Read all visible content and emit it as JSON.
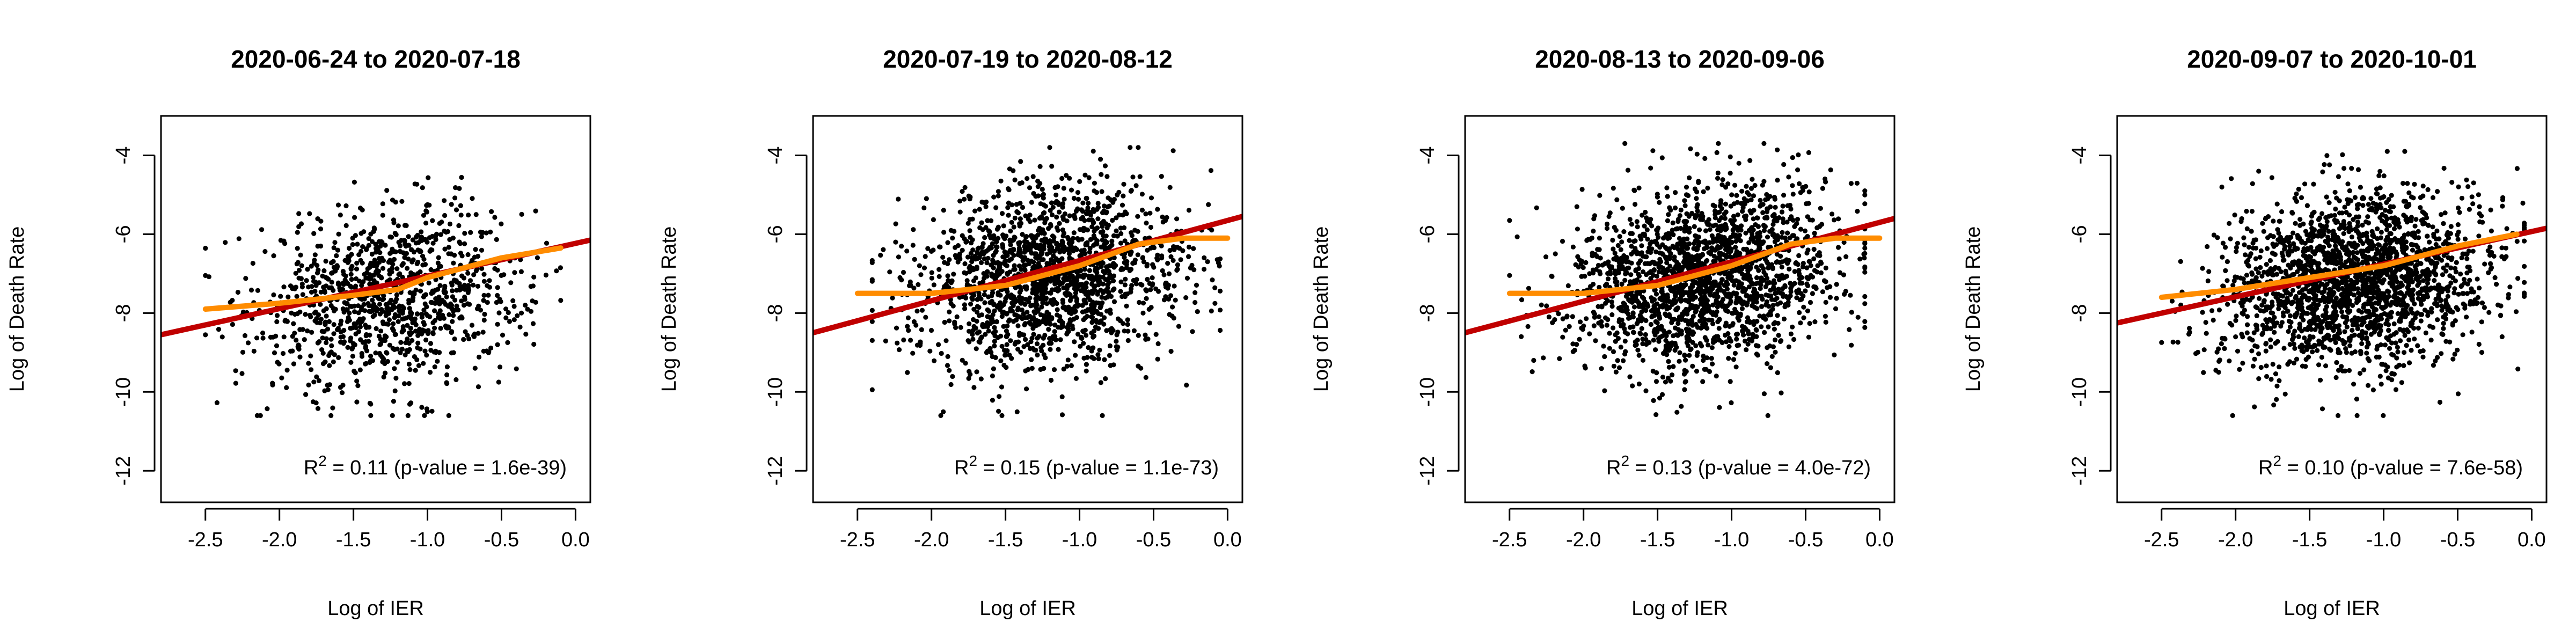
{
  "figure": {
    "background": "#ffffff",
    "point_color": "#000000",
    "fit_line_color": "#c00000",
    "smooth_line_color": "#ff8c00"
  },
  "chart_data": [
    {
      "type": "scatter",
      "title": "2020-06-24 to 2020-07-18",
      "xlabel": "Log of IER",
      "ylabel": "Log of Death Rate",
      "xlim": [
        -2.8,
        0.1
      ],
      "ylim": [
        -12.8,
        -3.0
      ],
      "xticks": [
        "-2.5",
        "-2.0",
        "-1.5",
        "-1.0",
        "-0.5",
        "0.0"
      ],
      "yticks": [
        "-4",
        "-6",
        "-8",
        "-10",
        "-12"
      ],
      "annotation": {
        "prefix": "R",
        "sup": "2",
        "text": " = 0.11 (p-value = 1.6e-39)"
      },
      "grid": false,
      "points_summary": {
        "n_approx": 1100,
        "x_range": [
          -2.5,
          -0.1
        ],
        "y_range": [
          -10.6,
          -4.3
        ],
        "x_mean": -1.25,
        "y_mean": -7.6,
        "x_sd": 0.45,
        "y_sd": 1.1
      },
      "fit_line": {
        "name": "linear fit",
        "x": [
          -2.8,
          0.1
        ],
        "y": [
          -8.55,
          -6.15
        ]
      },
      "smooth_line": {
        "name": "smooth",
        "x": [
          -2.5,
          -2.0,
          -1.5,
          -1.2,
          -1.0,
          -0.5,
          -0.1
        ],
        "y": [
          -7.9,
          -7.75,
          -7.55,
          -7.4,
          -7.1,
          -6.6,
          -6.35
        ]
      }
    },
    {
      "type": "scatter",
      "title": "2020-07-19 to 2020-08-12",
      "xlabel": "Log of IER",
      "ylabel": "Log of Death Rate",
      "xlim": [
        -2.8,
        0.1
      ],
      "ylim": [
        -12.8,
        -3.0
      ],
      "xticks": [
        "-2.5",
        "-2.0",
        "-1.5",
        "-1.0",
        "-0.5",
        "0.0"
      ],
      "yticks": [
        "-4",
        "-6",
        "-8",
        "-10",
        "-12"
      ],
      "annotation": {
        "prefix": "R",
        "sup": "2",
        "text": " = 0.15 (p-value = 1.1e-73)"
      },
      "grid": false,
      "points_summary": {
        "n_approx": 1700,
        "x_range": [
          -2.4,
          -0.05
        ],
        "y_range": [
          -10.6,
          -3.8
        ],
        "x_mean": -1.2,
        "y_mean": -7.1,
        "x_sd": 0.45,
        "y_sd": 1.15
      },
      "fit_line": {
        "name": "linear fit",
        "x": [
          -2.8,
          0.1
        ],
        "y": [
          -8.5,
          -5.55
        ]
      },
      "smooth_line": {
        "name": "smooth",
        "x": [
          -2.5,
          -2.0,
          -1.5,
          -1.0,
          -0.6,
          -0.3,
          0.0
        ],
        "y": [
          -7.5,
          -7.5,
          -7.3,
          -6.8,
          -6.25,
          -6.1,
          -6.1
        ]
      }
    },
    {
      "type": "scatter",
      "title": "2020-08-13 to 2020-09-06",
      "xlabel": "Log of IER",
      "ylabel": "Log of Death Rate",
      "xlim": [
        -2.8,
        0.1
      ],
      "ylim": [
        -12.8,
        -3.0
      ],
      "xticks": [
        "-2.5",
        "-2.0",
        "-1.5",
        "-1.0",
        "-0.5",
        "0.0"
      ],
      "yticks": [
        "-4",
        "-6",
        "-8",
        "-10",
        "-12"
      ],
      "annotation": {
        "prefix": "R",
        "sup": "2",
        "text": " = 0.13 (p-value = 4.0e-72)"
      },
      "grid": false,
      "points_summary": {
        "n_approx": 1900,
        "x_range": [
          -2.5,
          -0.1
        ],
        "y_range": [
          -10.6,
          -3.7
        ],
        "x_mean": -1.2,
        "y_mean": -7.1,
        "x_sd": 0.45,
        "y_sd": 1.15
      },
      "fit_line": {
        "name": "linear fit",
        "x": [
          -2.8,
          0.1
        ],
        "y": [
          -8.5,
          -5.6
        ]
      },
      "smooth_line": {
        "name": "smooth",
        "x": [
          -2.5,
          -2.0,
          -1.5,
          -1.0,
          -0.6,
          -0.3,
          0.0
        ],
        "y": [
          -7.5,
          -7.5,
          -7.3,
          -6.8,
          -6.25,
          -6.1,
          -6.1
        ]
      }
    },
    {
      "type": "scatter",
      "title": "2020-09-07 to 2020-10-01",
      "xlabel": "Log of IER",
      "ylabel": "Log of Death Rate",
      "xlim": [
        -2.8,
        0.1
      ],
      "ylim": [
        -12.8,
        -3.0
      ],
      "xticks": [
        "-2.5",
        "-2.0",
        "-1.5",
        "-1.0",
        "-0.5",
        "0.0"
      ],
      "yticks": [
        "-4",
        "-6",
        "-8",
        "-10",
        "-12"
      ],
      "annotation": {
        "prefix": "R",
        "sup": "2",
        "text": " = 0.10 (p-value = 7.6e-58)"
      },
      "grid": false,
      "points_summary": {
        "n_approx": 2100,
        "x_range": [
          -2.5,
          -0.05
        ],
        "y_range": [
          -10.6,
          -3.9
        ],
        "x_mean": -1.2,
        "y_mean": -7.2,
        "x_sd": 0.45,
        "y_sd": 1.1
      },
      "fit_line": {
        "name": "linear fit",
        "x": [
          -2.8,
          0.1
        ],
        "y": [
          -8.25,
          -5.85
        ]
      },
      "smooth_line": {
        "name": "smooth",
        "x": [
          -2.5,
          -2.0,
          -1.5,
          -1.0,
          -0.5,
          -0.1
        ],
        "y": [
          -7.6,
          -7.4,
          -7.1,
          -6.8,
          -6.3,
          -6.0
        ]
      }
    }
  ]
}
